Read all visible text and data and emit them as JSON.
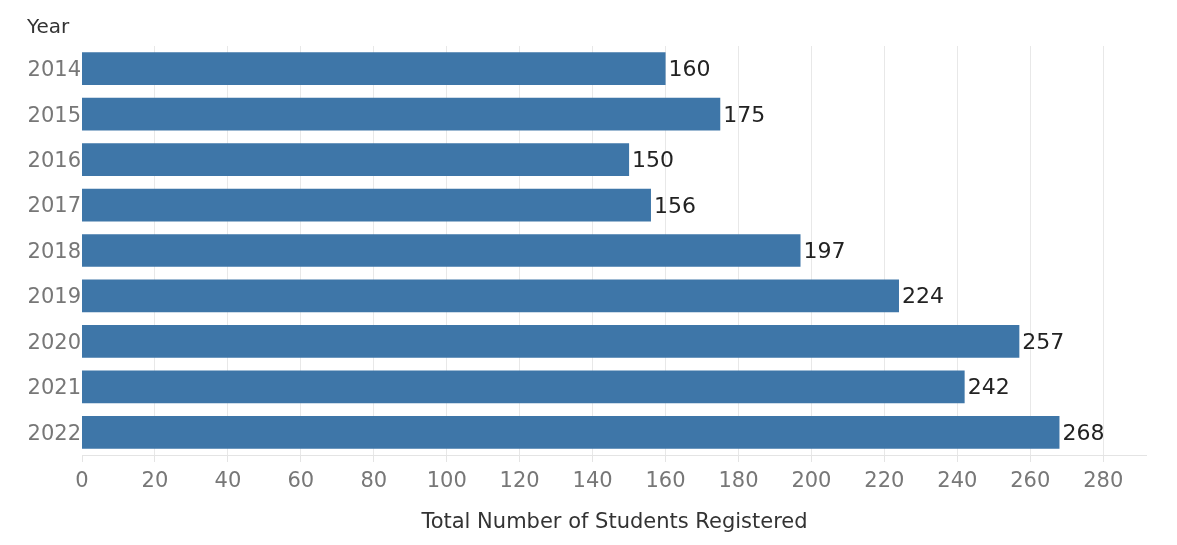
{
  "chart_data": {
    "type": "bar",
    "orientation": "horizontal",
    "ylabel": "Year",
    "xlabel": "Total Number of Students Registered",
    "categories": [
      "2014",
      "2015",
      "2016",
      "2017",
      "2018",
      "2019",
      "2020",
      "2021",
      "2022"
    ],
    "values": [
      160,
      175,
      150,
      156,
      197,
      224,
      257,
      242,
      268
    ],
    "color": "#3e76a8",
    "data_labels": true,
    "grid": "x",
    "legend": false,
    "xlim": [
      0,
      292
    ],
    "xticks": [
      0,
      20,
      40,
      60,
      80,
      100,
      120,
      140,
      160,
      180,
      200,
      220,
      240,
      260,
      280
    ]
  }
}
